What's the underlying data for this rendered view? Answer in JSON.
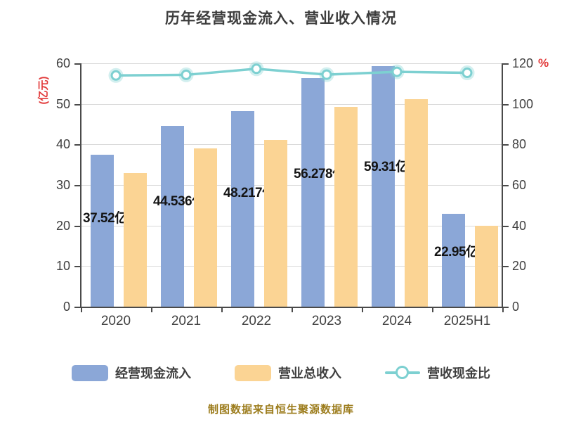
{
  "title": "历年经营现金流入、营业收入情况",
  "footer": "制图数据来自恒生聚源数据库",
  "colors": {
    "cash_in_bar": "#8ba7d7",
    "revenue_bar": "#fbd494",
    "ratio_line": "#7dd0d1",
    "marker_fill": "#ffffff",
    "axis_unit_red": "#e23b3b",
    "grid": "#d9d9d9",
    "axis": "#4a4a4a",
    "footer_text": "#9c7c1c"
  },
  "chart_data": {
    "type": "bar",
    "subtype": "grouped-bars-with-line-overlay",
    "categories": [
      "2020",
      "2021",
      "2022",
      "2023",
      "2024",
      "2025H1"
    ],
    "series": [
      {
        "name": "经营现金流入",
        "type": "bar",
        "axis": "left",
        "color": "#8ba7d7",
        "values": [
          37.52,
          44.536,
          48.217,
          56.278,
          59.31,
          22.95
        ],
        "labels": [
          "37.52亿",
          "44.536亿",
          "48.217亿",
          "56.278亿",
          "59.31亿",
          "22.95亿"
        ]
      },
      {
        "name": "营业总收入",
        "type": "bar",
        "axis": "left",
        "color": "#fbd494",
        "values": [
          32.9,
          38.95,
          41.1,
          49.2,
          51.2,
          19.9
        ]
      },
      {
        "name": "营收现金比",
        "type": "line",
        "axis": "right",
        "color": "#7dd0d1",
        "values": [
          114.0,
          114.3,
          117.3,
          114.4,
          115.8,
          115.3
        ]
      }
    ],
    "left_axis": {
      "label": "(亿元)",
      "min": 0,
      "max": 60,
      "step": 10,
      "ticks": [
        0,
        10,
        20,
        30,
        40,
        50,
        60
      ]
    },
    "right_axis": {
      "label": "%",
      "min": 0,
      "max": 120,
      "step": 20,
      "ticks": [
        0,
        20,
        40,
        60,
        80,
        100,
        120
      ]
    },
    "grid": true,
    "legend_position": "bottom"
  }
}
